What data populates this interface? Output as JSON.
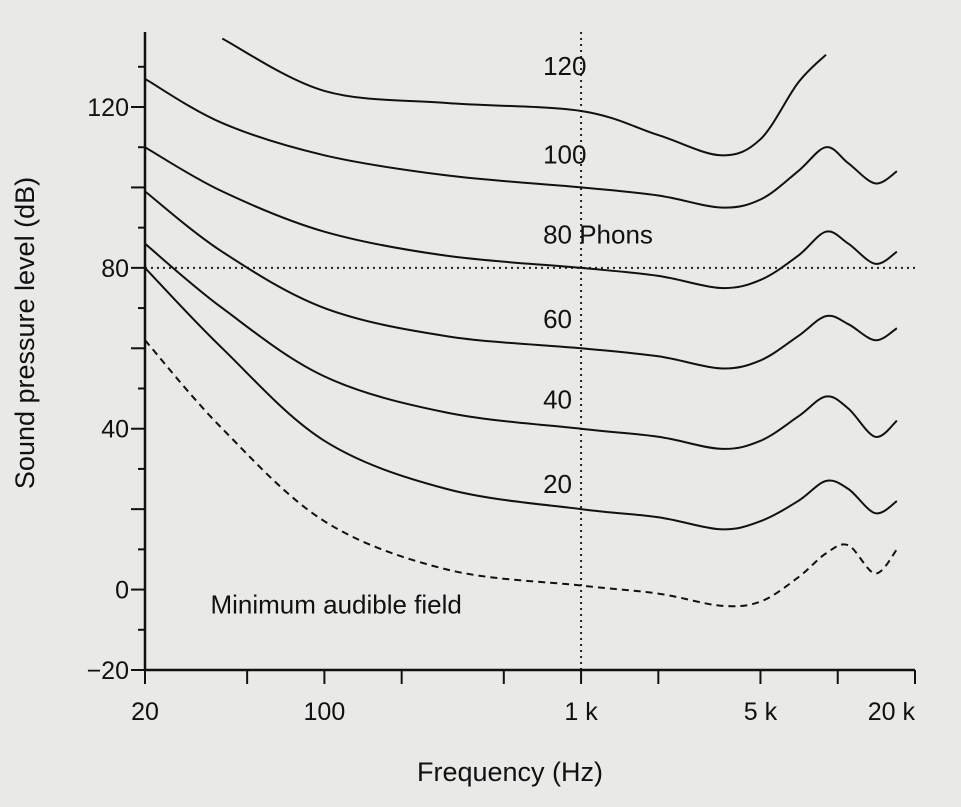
{
  "chart_data": {
    "type": "line",
    "title": "",
    "xlabel": "Frequency (Hz)",
    "ylabel": "Sound pressure level (dB)",
    "xscale": "log",
    "xlim": [
      20,
      20000
    ],
    "ylim": [
      -20,
      130
    ],
    "grid": false,
    "reference_lines": {
      "x": 1000,
      "y": 80,
      "style": "dotted"
    },
    "x_ticks": [
      {
        "value": 20,
        "label": "20"
      },
      {
        "value": 100,
        "label": "100"
      },
      {
        "value": 1000,
        "label": "1 k"
      },
      {
        "value": 5000,
        "label": "5 k"
      },
      {
        "value": 20000,
        "label": "20 k"
      }
    ],
    "y_ticks": [
      {
        "value": 120,
        "label": "120"
      },
      {
        "value": 80,
        "label": "80"
      },
      {
        "value": 40,
        "label": "40"
      },
      {
        "value": 0,
        "label": "0"
      },
      {
        "value": -20,
        "label": "−20"
      }
    ],
    "series": [
      {
        "name": "120",
        "label_at": [
          1000,
          128
        ],
        "style": "solid",
        "points": [
          [
            40,
            137
          ],
          [
            100,
            124
          ],
          [
            300,
            121
          ],
          [
            1000,
            119
          ],
          [
            2000,
            113
          ],
          [
            3500,
            108
          ],
          [
            5000,
            112
          ],
          [
            7000,
            126
          ],
          [
            9000,
            133
          ]
        ]
      },
      {
        "name": "100",
        "label_at": [
          1000,
          106
        ],
        "style": "solid",
        "points": [
          [
            20,
            127
          ],
          [
            40,
            116
          ],
          [
            100,
            108
          ],
          [
            300,
            103
          ],
          [
            1000,
            100
          ],
          [
            2000,
            98
          ],
          [
            3500,
            95
          ],
          [
            5000,
            97
          ],
          [
            7000,
            104
          ],
          [
            9000,
            110
          ],
          [
            11000,
            106
          ],
          [
            14000,
            101
          ],
          [
            17000,
            104
          ]
        ]
      },
      {
        "name": "80 Phons",
        "label_at": [
          1000,
          86
        ],
        "style": "solid",
        "points": [
          [
            20,
            110
          ],
          [
            40,
            99
          ],
          [
            100,
            89
          ],
          [
            300,
            83
          ],
          [
            1000,
            80
          ],
          [
            2000,
            78
          ],
          [
            3500,
            75
          ],
          [
            5000,
            77
          ],
          [
            7000,
            83
          ],
          [
            9000,
            89
          ],
          [
            11000,
            86
          ],
          [
            14000,
            81
          ],
          [
            17000,
            84
          ]
        ]
      },
      {
        "name": "60",
        "label_at": [
          1000,
          65
        ],
        "style": "solid",
        "points": [
          [
            20,
            99
          ],
          [
            40,
            84
          ],
          [
            100,
            70
          ],
          [
            300,
            63
          ],
          [
            1000,
            60
          ],
          [
            2000,
            58
          ],
          [
            3500,
            55
          ],
          [
            5000,
            57
          ],
          [
            7000,
            63
          ],
          [
            9000,
            68
          ],
          [
            11000,
            66
          ],
          [
            14000,
            62
          ],
          [
            17000,
            65
          ]
        ]
      },
      {
        "name": "40",
        "label_at": [
          1000,
          45
        ],
        "style": "solid",
        "points": [
          [
            20,
            86
          ],
          [
            40,
            70
          ],
          [
            100,
            53
          ],
          [
            300,
            44
          ],
          [
            1000,
            40
          ],
          [
            2000,
            38
          ],
          [
            3500,
            35
          ],
          [
            5000,
            37
          ],
          [
            7000,
            43
          ],
          [
            9000,
            48
          ],
          [
            11000,
            45
          ],
          [
            14000,
            38
          ],
          [
            17000,
            42
          ]
        ]
      },
      {
        "name": "20",
        "label_at": [
          1000,
          24
        ],
        "style": "solid",
        "points": [
          [
            20,
            80
          ],
          [
            40,
            60
          ],
          [
            100,
            37
          ],
          [
            300,
            25
          ],
          [
            1000,
            20
          ],
          [
            2000,
            18
          ],
          [
            3500,
            15
          ],
          [
            5000,
            17
          ],
          [
            7000,
            22
          ],
          [
            9000,
            27
          ],
          [
            11000,
            25
          ],
          [
            14000,
            19
          ],
          [
            17000,
            22
          ]
        ]
      },
      {
        "name": "Minimum audible field",
        "label_at": [
          21,
          -6
        ],
        "style": "dashed",
        "points": [
          [
            20,
            62
          ],
          [
            40,
            40
          ],
          [
            100,
            17
          ],
          [
            300,
            5
          ],
          [
            1000,
            1
          ],
          [
            2000,
            -1
          ],
          [
            3500,
            -4
          ],
          [
            5000,
            -3
          ],
          [
            7000,
            3
          ],
          [
            9000,
            9
          ],
          [
            11000,
            11
          ],
          [
            14000,
            4
          ],
          [
            17000,
            10
          ]
        ]
      }
    ]
  }
}
